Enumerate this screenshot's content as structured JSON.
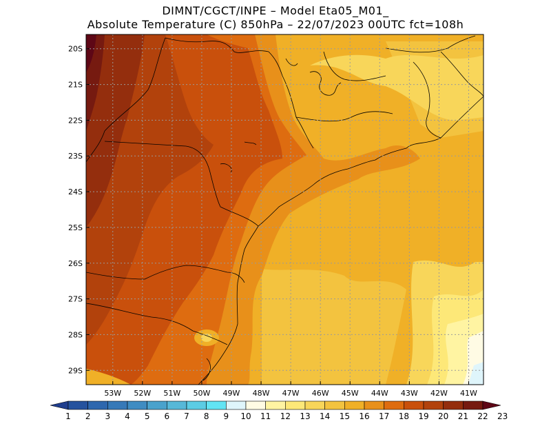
{
  "title": {
    "line1": "DIMNT/CGCT/INPE –  Model Eta05_M01_",
    "line2": "Absolute Temperature (C) 850hPa –  22/07/2023 00UTC fct=108h"
  },
  "map": {
    "lat_labels": [
      "20S",
      "21S",
      "22S",
      "23S",
      "24S",
      "25S",
      "26S",
      "27S",
      "28S",
      "29S"
    ],
    "lon_labels": [
      "53W",
      "52W",
      "51W",
      "50W",
      "49W",
      "48W",
      "47W",
      "46W",
      "45W",
      "44W",
      "43W",
      "42W",
      "41W"
    ],
    "extent": {
      "lon_min": -53.9,
      "lon_max": -40.5,
      "lat_min": -29.4,
      "lat_max": -19.6
    },
    "grid": "dotted"
  },
  "colorbar": {
    "labels": [
      "1",
      "2",
      "3",
      "4",
      "5",
      "6",
      "7",
      "8",
      "9",
      "10",
      "11",
      "12",
      "13",
      "14",
      "15",
      "16",
      "17",
      "18",
      "19",
      "20",
      "21",
      "22",
      "23"
    ],
    "colors": [
      "#1f3e8e",
      "#25529e",
      "#2e67ae",
      "#3679b8",
      "#3f8cc2",
      "#4aa2cc",
      "#57b8d8",
      "#5ccce4",
      "#62e4f4",
      "#dff5fb",
      "#fffbe4",
      "#fff4a2",
      "#fde878",
      "#f8d65a",
      "#f3c33f",
      "#f0b027",
      "#e8901a",
      "#de6c10",
      "#c9500c",
      "#b2420c",
      "#942e0d",
      "#761a10",
      "#5e0716"
    ]
  }
}
